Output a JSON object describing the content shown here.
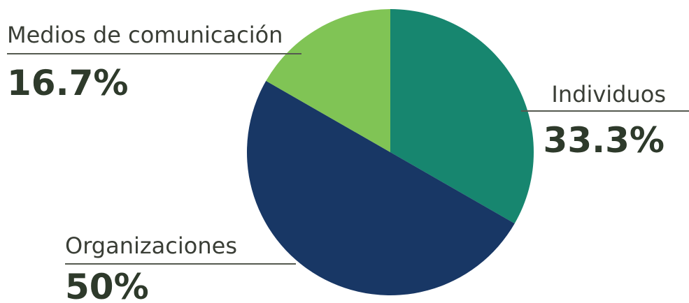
{
  "chart_data": {
    "type": "pie",
    "slices": [
      {
        "label": "Individuos",
        "value": 33.3,
        "value_label": "33.3%",
        "color": "#17866f"
      },
      {
        "label": "Organizaciones",
        "value": 50,
        "value_label": "50%",
        "color": "#183765"
      },
      {
        "label": "Medios de comunicación",
        "value": 16.7,
        "value_label": "16.7%",
        "color": "#80c455"
      }
    ],
    "start_angle": "12 o'clock",
    "direction": "clockwise",
    "label_color": "#3a3e36",
    "value_color": "#2e3a2b",
    "leader_line_color": "#555a50"
  }
}
